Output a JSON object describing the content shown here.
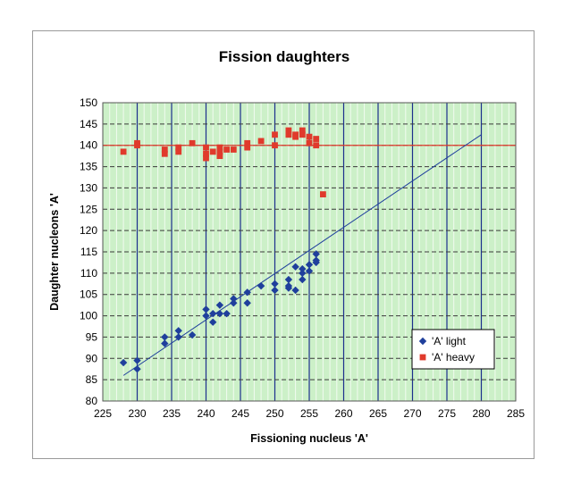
{
  "chart_data": {
    "type": "scatter",
    "title": "Fission daughters",
    "xlabel": "Fissioning nucleus 'A'",
    "ylabel": "Daughter nucleons 'A'",
    "xlim": [
      225,
      285
    ],
    "ylim": [
      80,
      150
    ],
    "xticks": [
      225,
      230,
      235,
      240,
      245,
      250,
      255,
      260,
      265,
      270,
      275,
      280,
      285
    ],
    "yticks": [
      80,
      85,
      90,
      95,
      100,
      105,
      110,
      115,
      120,
      125,
      130,
      135,
      140,
      145,
      150
    ],
    "grid": true,
    "plot_background": "#ccf0c8",
    "legend_position": "lower-right",
    "series": [
      {
        "name": "'A' light",
        "marker": "diamond",
        "color": "#1f3f9c",
        "points": [
          [
            228,
            89
          ],
          [
            230,
            89.5
          ],
          [
            230,
            87.5
          ],
          [
            234,
            95
          ],
          [
            234,
            93.5
          ],
          [
            236,
            96.5
          ],
          [
            236,
            95
          ],
          [
            238,
            95.5
          ],
          [
            240,
            101.5
          ],
          [
            240,
            100
          ],
          [
            241,
            98.5
          ],
          [
            241,
            100.5
          ],
          [
            242,
            102.5
          ],
          [
            242,
            100.5
          ],
          [
            243,
            100.5
          ],
          [
            244,
            104
          ],
          [
            244,
            103
          ],
          [
            246,
            105.5
          ],
          [
            246,
            103
          ],
          [
            248,
            107
          ],
          [
            250,
            107.5
          ],
          [
            250,
            106
          ],
          [
            252,
            108.5
          ],
          [
            252,
            107
          ],
          [
            252,
            106.5
          ],
          [
            253,
            111.5
          ],
          [
            253,
            106
          ],
          [
            254,
            111
          ],
          [
            254,
            110
          ],
          [
            254,
            108.5
          ],
          [
            255,
            112
          ],
          [
            255,
            110.5
          ],
          [
            256,
            114.5
          ],
          [
            256,
            113
          ],
          [
            256,
            112.5
          ]
        ]
      },
      {
        "name": "'A' heavy",
        "marker": "square",
        "color": "#e03a2c",
        "points": [
          [
            228,
            138.5
          ],
          [
            230,
            140.5
          ],
          [
            230,
            140
          ],
          [
            234,
            139
          ],
          [
            234,
            138
          ],
          [
            236,
            139.5
          ],
          [
            236,
            138.5
          ],
          [
            238,
            140.5
          ],
          [
            240,
            139.5
          ],
          [
            240,
            138
          ],
          [
            240,
            137
          ],
          [
            241,
            138.5
          ],
          [
            242,
            139.5
          ],
          [
            242,
            138.5
          ],
          [
            242,
            137.5
          ],
          [
            243,
            139
          ],
          [
            244,
            139
          ],
          [
            246,
            140.5
          ],
          [
            246,
            139.5
          ],
          [
            248,
            141
          ],
          [
            250,
            142.5
          ],
          [
            250,
            140
          ],
          [
            252,
            143.5
          ],
          [
            252,
            142.5
          ],
          [
            253,
            142.5
          ],
          [
            253,
            142
          ],
          [
            254,
            143.5
          ],
          [
            254,
            142.5
          ],
          [
            255,
            142
          ],
          [
            255,
            140.5
          ],
          [
            256,
            141.5
          ],
          [
            256,
            140
          ],
          [
            257,
            128.5
          ]
        ]
      }
    ],
    "reference_lines": [
      {
        "kind": "horizontal",
        "y": 140,
        "color": "#e03a2c"
      },
      {
        "kind": "trend",
        "from": [
          228,
          86
        ],
        "to": [
          280,
          142.5
        ],
        "color": "#1f3f9c"
      }
    ]
  },
  "legend": {
    "light_label": "'A' light",
    "heavy_label": "'A' heavy"
  }
}
